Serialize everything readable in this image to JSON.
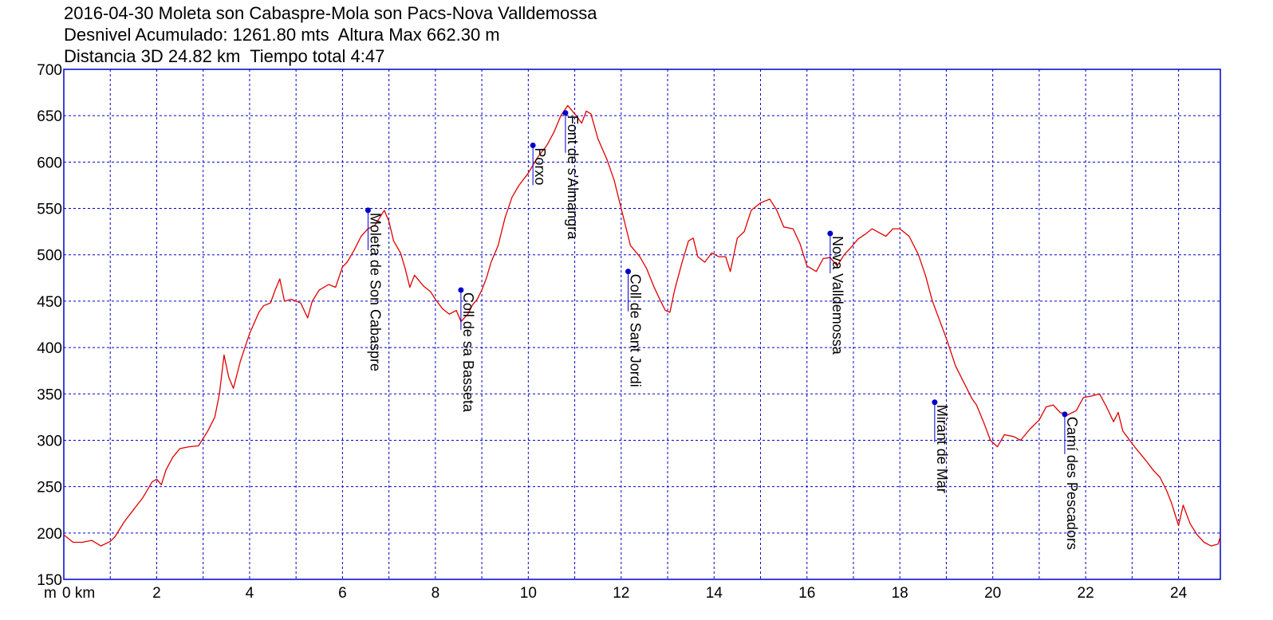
{
  "title_lines": [
    "2016-04-30 Moleta son Cabaspre-Mola son Pacs-Nova Valldemossa",
    "Desnivel Acumulado: 1261.80 mts  Altura Max 662.30 m",
    "Distancia 3D 24.82 km  Tiempo total 4:47"
  ],
  "colors": {
    "profile": "#e00000",
    "frame": "#0000cc",
    "grid": "#0000cc",
    "waypoint": "#0000cc"
  },
  "chart_data": {
    "type": "line",
    "xlabel": "km",
    "ylabel": "m",
    "xlim": [
      0,
      24.9
    ],
    "ylim": [
      150,
      700
    ],
    "x_tick_labels": [
      {
        "v": 0,
        "label": "0 km"
      },
      {
        "v": 2,
        "label": "2"
      },
      {
        "v": 4,
        "label": "4"
      },
      {
        "v": 6,
        "label": "6"
      },
      {
        "v": 8,
        "label": "8"
      },
      {
        "v": 10,
        "label": "10"
      },
      {
        "v": 12,
        "label": "12"
      },
      {
        "v": 14,
        "label": "14"
      },
      {
        "v": 16,
        "label": "16"
      },
      {
        "v": 18,
        "label": "18"
      },
      {
        "v": 20,
        "label": "20"
      },
      {
        "v": 22,
        "label": "22"
      },
      {
        "v": 24,
        "label": "24"
      }
    ],
    "y_ticks": [
      150,
      200,
      250,
      300,
      350,
      400,
      450,
      500,
      550,
      600,
      650,
      700
    ],
    "grid": true,
    "series": [
      {
        "values": [
          [
            0,
            198
          ],
          [
            0.2,
            190
          ],
          [
            0.4,
            190
          ],
          [
            0.6,
            192
          ],
          [
            0.8,
            186
          ],
          [
            1.0,
            191
          ],
          [
            1.1,
            196
          ],
          [
            1.3,
            212
          ],
          [
            1.5,
            225
          ],
          [
            1.7,
            238
          ],
          [
            1.9,
            255
          ],
          [
            2.0,
            258
          ],
          [
            2.1,
            252
          ],
          [
            2.2,
            268
          ],
          [
            2.35,
            282
          ],
          [
            2.5,
            291
          ],
          [
            2.7,
            293
          ],
          [
            2.9,
            294
          ],
          [
            3.1,
            310
          ],
          [
            3.25,
            325
          ],
          [
            3.35,
            350
          ],
          [
            3.45,
            392
          ],
          [
            3.55,
            368
          ],
          [
            3.65,
            356
          ],
          [
            3.8,
            385
          ],
          [
            4.0,
            415
          ],
          [
            4.2,
            438
          ],
          [
            4.3,
            445
          ],
          [
            4.45,
            448
          ],
          [
            4.55,
            462
          ],
          [
            4.65,
            474
          ],
          [
            4.75,
            450
          ],
          [
            4.9,
            452
          ],
          [
            5.1,
            448
          ],
          [
            5.25,
            432
          ],
          [
            5.35,
            450
          ],
          [
            5.5,
            462
          ],
          [
            5.7,
            468
          ],
          [
            5.85,
            465
          ],
          [
            6.0,
            487
          ],
          [
            6.1,
            492
          ],
          [
            6.25,
            505
          ],
          [
            6.4,
            520
          ],
          [
            6.55,
            528
          ],
          [
            6.7,
            532
          ],
          [
            6.8,
            540
          ],
          [
            6.9,
            548
          ],
          [
            7.0,
            536
          ],
          [
            7.1,
            515
          ],
          [
            7.25,
            502
          ],
          [
            7.35,
            485
          ],
          [
            7.45,
            465
          ],
          [
            7.55,
            478
          ],
          [
            7.65,
            472
          ],
          [
            7.75,
            466
          ],
          [
            7.9,
            460
          ],
          [
            8.0,
            452
          ],
          [
            8.15,
            442
          ],
          [
            8.3,
            436
          ],
          [
            8.45,
            440
          ],
          [
            8.55,
            428
          ],
          [
            8.7,
            436
          ],
          [
            8.8,
            446
          ],
          [
            8.9,
            452
          ],
          [
            9.0,
            462
          ],
          [
            9.1,
            475
          ],
          [
            9.2,
            492
          ],
          [
            9.35,
            510
          ],
          [
            9.5,
            540
          ],
          [
            9.65,
            562
          ],
          [
            9.8,
            575
          ],
          [
            10.0,
            588
          ],
          [
            10.2,
            605
          ],
          [
            10.4,
            618
          ],
          [
            10.55,
            632
          ],
          [
            10.7,
            650
          ],
          [
            10.85,
            661
          ],
          [
            11.0,
            652
          ],
          [
            11.15,
            642
          ],
          [
            11.25,
            655
          ],
          [
            11.35,
            652
          ],
          [
            11.5,
            625
          ],
          [
            11.7,
            602
          ],
          [
            11.85,
            580
          ],
          [
            12.0,
            550
          ],
          [
            12.2,
            510
          ],
          [
            12.4,
            498
          ],
          [
            12.55,
            485
          ],
          [
            12.7,
            466
          ],
          [
            12.85,
            450
          ],
          [
            12.95,
            440
          ],
          [
            13.05,
            438
          ],
          [
            13.15,
            462
          ],
          [
            13.3,
            490
          ],
          [
            13.45,
            515
          ],
          [
            13.55,
            518
          ],
          [
            13.65,
            498
          ],
          [
            13.8,
            492
          ],
          [
            13.95,
            502
          ],
          [
            14.1,
            498
          ],
          [
            14.25,
            498
          ],
          [
            14.35,
            482
          ],
          [
            14.5,
            518
          ],
          [
            14.65,
            525
          ],
          [
            14.8,
            548
          ],
          [
            15.0,
            556
          ],
          [
            15.2,
            560
          ],
          [
            15.35,
            548
          ],
          [
            15.5,
            530
          ],
          [
            15.7,
            528
          ],
          [
            15.85,
            512
          ],
          [
            16.0,
            488
          ],
          [
            16.2,
            482
          ],
          [
            16.35,
            496
          ],
          [
            16.5,
            497
          ],
          [
            16.65,
            488
          ],
          [
            16.8,
            500
          ],
          [
            16.95,
            508
          ],
          [
            17.1,
            517
          ],
          [
            17.25,
            522
          ],
          [
            17.4,
            528
          ],
          [
            17.55,
            524
          ],
          [
            17.7,
            520
          ],
          [
            17.85,
            528
          ],
          [
            18.0,
            528
          ],
          [
            18.2,
            520
          ],
          [
            18.4,
            500
          ],
          [
            18.55,
            478
          ],
          [
            18.7,
            450
          ],
          [
            18.85,
            430
          ],
          [
            19.0,
            410
          ],
          [
            19.2,
            380
          ],
          [
            19.4,
            360
          ],
          [
            19.55,
            345
          ],
          [
            19.65,
            338
          ],
          [
            19.8,
            320
          ],
          [
            19.95,
            300
          ],
          [
            20.1,
            293
          ],
          [
            20.25,
            306
          ],
          [
            20.45,
            304
          ],
          [
            20.6,
            300
          ],
          [
            20.8,
            312
          ],
          [
            21.0,
            322
          ],
          [
            21.15,
            336
          ],
          [
            21.3,
            338
          ],
          [
            21.45,
            330
          ],
          [
            21.6,
            327
          ],
          [
            21.8,
            332
          ],
          [
            21.95,
            346
          ],
          [
            22.15,
            348
          ],
          [
            22.3,
            350
          ],
          [
            22.45,
            336
          ],
          [
            22.6,
            320
          ],
          [
            22.7,
            330
          ],
          [
            22.8,
            310
          ],
          [
            22.95,
            300
          ],
          [
            23.1,
            290
          ],
          [
            23.3,
            278
          ],
          [
            23.45,
            268
          ],
          [
            23.6,
            260
          ],
          [
            23.75,
            245
          ],
          [
            23.85,
            232
          ],
          [
            24.0,
            208
          ],
          [
            24.1,
            230
          ],
          [
            24.25,
            210
          ],
          [
            24.4,
            198
          ],
          [
            24.55,
            190
          ],
          [
            24.7,
            186
          ],
          [
            24.85,
            188
          ],
          [
            24.9,
            196
          ]
        ]
      }
    ],
    "waypoints": [
      {
        "x": 6.55,
        "y": 548,
        "label": "Moleta de Son Cabaspre"
      },
      {
        "x": 8.55,
        "y": 462,
        "label": "Coll de sa Basseta"
      },
      {
        "x": 10.1,
        "y": 618,
        "label": "Porxo"
      },
      {
        "x": 10.8,
        "y": 653,
        "label": "Font de s'Almangra"
      },
      {
        "x": 12.15,
        "y": 482,
        "label": "Coll de Sant Jordi"
      },
      {
        "x": 16.5,
        "y": 523,
        "label": "Nova Valldemossa"
      },
      {
        "x": 18.75,
        "y": 341,
        "label": "Mirant de Mar"
      },
      {
        "x": 21.55,
        "y": 328,
        "label": "Camí des Pescadors"
      }
    ]
  }
}
